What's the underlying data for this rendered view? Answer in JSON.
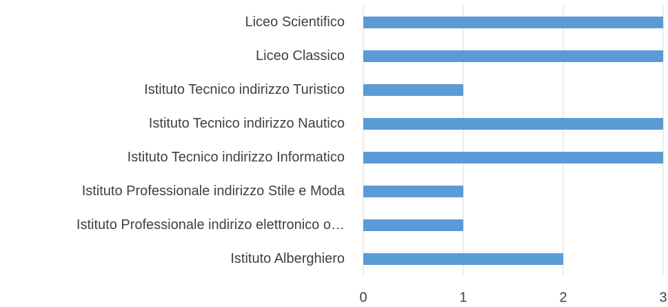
{
  "chart_data": {
    "type": "bar",
    "orientation": "horizontal",
    "categories": [
      "Liceo Scientifico",
      "Liceo Classico",
      "Istituto Tecnico indirizzo Turistico",
      "Istituto Tecnico indirizzo Nautico",
      "Istituto Tecnico indirizzo Informatico",
      "Istituto Professionale indirizzo Stile e Moda",
      "Istituto Professionale indirizo elettronico o…",
      "Istituto Alberghiero"
    ],
    "values": [
      3,
      3,
      1,
      3,
      3,
      1,
      1,
      2
    ],
    "color": "#5b9bd5",
    "xlim": [
      0,
      3
    ],
    "xticks": [
      0,
      1,
      2,
      3
    ],
    "grid": true
  }
}
